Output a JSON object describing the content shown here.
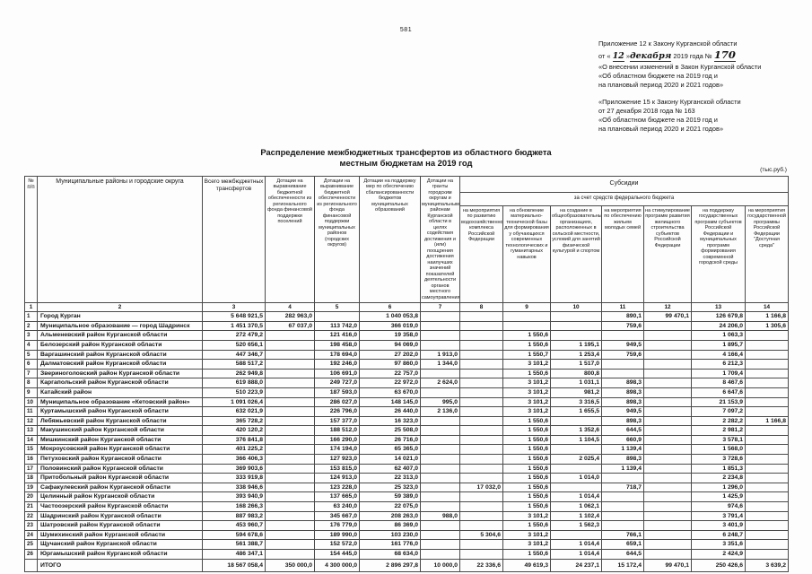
{
  "page_number": "581",
  "appendix1": {
    "line1": "Приложение 12 к Закону Курганской области",
    "date_prefix": "от «",
    "date_day": "12",
    "date_close": "»",
    "date_month": "декабря",
    "date_suffix": "2019 года №",
    "number": "170",
    "line3": "«О внесении изменений в Закон Курганской области",
    "line4": "«Об областном бюджете на 2019 год и",
    "line5": "на плановый период 2020 и 2021 годов»"
  },
  "appendix2": {
    "line1": "«Приложение 15 к Закону Курганской области",
    "line2": "от  27 декабря 2018 года  № 163",
    "line3": "«Об областном бюджете на 2019 год и",
    "line4": "на плановый период 2020 и 2021 годов»"
  },
  "title": {
    "line1": "Распределение межбюджетных трансфертов из областного бюджета",
    "line2": "местным бюджетам на 2019 год"
  },
  "units": "(тыс.руб.)",
  "table": {
    "headers": {
      "c1": "№ п/п",
      "c2": "Муниципальные районы и городские округа",
      "c3": "Всего межбюджетных трансфертов",
      "c4": "Дотации на выравнивание бюджетной обеспеченности из регионального фонда финансовой поддержки поселений",
      "c5": "Дотации на выравнивание бюджетной обеспеченности из регионального фонда финансовой поддержки муниципальных районов (городских округов)",
      "c6": "Дотации на поддержку мер по обеспечению сбалансированности бюджетов муниципальных образований",
      "c7": "Дотации на гранты городским округам и муниципальным районам Курганской области в целях содействия достижения и (или) поощрения достижения наилучших значений показателей деятельности органов местного самоуправления",
      "subsidies": "Субсидии",
      "fed_source": "за счет средств федерального бюджета",
      "c8": "на мероприятия по развитию водохозяйственного комплекса Российской Федерации",
      "c9": "на обновление материально-технической базы для формирования у обучающихся современных технологических и гуманитарных навыков",
      "c10": "на создание в общеобразовательных организациях, расположенных в сельской местности, условий для занятий физической культурой и спортом",
      "c11": "на мероприятия по обеспечению жильем молодых семей",
      "c12": "на стимулирование программ развития жилищного строительства субъектов Российской Федерации",
      "c13": "на поддержку государственных программ субъектов Российской Федерации и муниципальных программ формирования современной городской среды",
      "c14": "на мероприятия государственной программы Российской Федерации \"Доступная среда\""
    },
    "numbering": [
      "1",
      "2",
      "3",
      "4",
      "5",
      "6",
      "7",
      "8",
      "9",
      "10",
      "11",
      "12",
      "13",
      "14"
    ],
    "rows": [
      {
        "num": "1",
        "name": "Город Курган",
        "values": [
          "5 648 921,5",
          "282 963,0",
          "",
          "1 040 053,8",
          "",
          "",
          "",
          "",
          "890,1",
          "99 470,1",
          "126 679,8",
          "1 166,8"
        ]
      },
      {
        "num": "2",
        "name": "Муниципальное образование — город Шадринск",
        "values": [
          "1 451 370,5",
          "67 037,0",
          "113 742,0",
          "366 019,0",
          "",
          "",
          "",
          "",
          "759,6",
          "",
          "24 206,0",
          "1 305,6"
        ]
      },
      {
        "num": "3",
        "name": "Альменевский район Курганской области",
        "values": [
          "272 479,2",
          "",
          "121 416,0",
          "19 358,0",
          "",
          "",
          "1 550,6",
          "",
          "",
          "",
          "1 063,3",
          ""
        ]
      },
      {
        "num": "4",
        "name": "Белозерский район Курганской области",
        "values": [
          "520 656,1",
          "",
          "198 458,0",
          "94 069,0",
          "",
          "",
          "1 550,6",
          "1 195,1",
          "949,5",
          "",
          "1 895,7",
          ""
        ]
      },
      {
        "num": "5",
        "name": "Варгашинский район Курганской области",
        "values": [
          "447 346,7",
          "",
          "178 694,0",
          "27 202,0",
          "1 913,0",
          "",
          "1 550,7",
          "1 253,4",
          "759,6",
          "",
          "4 166,4",
          ""
        ]
      },
      {
        "num": "6",
        "name": "Далматовский район Курганской области",
        "values": [
          "588 517,2",
          "",
          "192 246,0",
          "97 860,0",
          "1 344,0",
          "",
          "3 101,2",
          "1 517,0",
          "",
          "",
          "6 212,3",
          ""
        ]
      },
      {
        "num": "7",
        "name": "Звериноголовский район Курганской области",
        "values": [
          "262 949,8",
          "",
          "106 691,0",
          "22 757,0",
          "",
          "",
          "1 550,6",
          "800,8",
          "",
          "",
          "1 709,4",
          ""
        ]
      },
      {
        "num": "8",
        "name": "Каргапольский район Курганской области",
        "values": [
          "619 888,0",
          "",
          "249 727,0",
          "22 972,0",
          "2 624,0",
          "",
          "3 101,2",
          "1 031,1",
          "898,3",
          "",
          "8 467,6",
          ""
        ]
      },
      {
        "num": "9",
        "name": "Катайский район",
        "values": [
          "510 223,9",
          "",
          "187 593,0",
          "63 670,0",
          "",
          "",
          "3 101,2",
          "981,2",
          "898,3",
          "",
          "6 647,6",
          ""
        ]
      },
      {
        "num": "10",
        "name": "Муниципальное образование «Кетовский район»",
        "values": [
          "1 091 026,4",
          "",
          "286 027,0",
          "148 145,0",
          "995,0",
          "",
          "3 101,2",
          "3 316,5",
          "898,3",
          "",
          "21 153,9",
          ""
        ]
      },
      {
        "num": "11",
        "name": "Куртамышский район Курганской области",
        "values": [
          "632 021,9",
          "",
          "226 796,0",
          "26 440,0",
          "2 136,0",
          "",
          "3 101,2",
          "1 655,5",
          "949,5",
          "",
          "7 097,2",
          ""
        ]
      },
      {
        "num": "12",
        "name": "Лебяжьевский район Курганской области",
        "values": [
          "365 728,2",
          "",
          "157 377,0",
          "16 323,0",
          "",
          "",
          "1 550,6",
          "",
          "898,3",
          "",
          "2 282,2",
          "1 166,8"
        ]
      },
      {
        "num": "13",
        "name": "Макушинский район Курганской области",
        "values": [
          "420 120,2",
          "",
          "188 512,0",
          "25 508,0",
          "",
          "",
          "1 550,6",
          "1 352,6",
          "644,5",
          "",
          "2 981,2",
          ""
        ]
      },
      {
        "num": "14",
        "name": "Мишкинский район Курганской области",
        "values": [
          "376 841,8",
          "",
          "166 290,0",
          "26 716,0",
          "",
          "",
          "1 550,6",
          "1 104,5",
          "660,9",
          "",
          "3 578,1",
          ""
        ]
      },
      {
        "num": "15",
        "name": "Мокроусовский район Курганской области",
        "values": [
          "401 225,2",
          "",
          "174 194,0",
          "65 365,0",
          "",
          "",
          "1 550,6",
          "",
          "1 139,4",
          "",
          "1 568,0",
          ""
        ]
      },
      {
        "num": "16",
        "name": "Петуховский район Курганской области",
        "values": [
          "366 406,3",
          "",
          "127 923,0",
          "14 021,0",
          "",
          "",
          "1 550,6",
          "2 025,4",
          "898,3",
          "",
          "3 728,6",
          ""
        ]
      },
      {
        "num": "17",
        "name": "Половинский район Курганской области",
        "values": [
          "369 903,6",
          "",
          "153 815,0",
          "62 407,0",
          "",
          "",
          "1 550,6",
          "",
          "1 139,4",
          "",
          "1 851,3",
          ""
        ]
      },
      {
        "num": "18",
        "name": "Притобольный район Курганской области",
        "values": [
          "333 919,8",
          "",
          "124 913,0",
          "22 313,0",
          "",
          "",
          "1 550,6",
          "1 014,0",
          "",
          "",
          "2 234,8",
          ""
        ]
      },
      {
        "num": "19",
        "name": "Сафакулевский район Курганской области",
        "values": [
          "338 946,6",
          "",
          "123 228,0",
          "25 323,0",
          "",
          "17 032,0",
          "1 550,6",
          "",
          "718,7",
          "",
          "1 296,0",
          ""
        ]
      },
      {
        "num": "20",
        "name": "Целинный район Курганской области",
        "values": [
          "393 940,9",
          "",
          "137 665,0",
          "59 389,0",
          "",
          "",
          "1 550,6",
          "1 014,4",
          "",
          "",
          "1 425,9",
          ""
        ]
      },
      {
        "num": "21",
        "name": "Частоозерский район Курганской области",
        "values": [
          "168 266,3",
          "",
          "63 240,0",
          "22 075,0",
          "",
          "",
          "1 550,6",
          "1 062,1",
          "",
          "",
          "974,6",
          ""
        ]
      },
      {
        "num": "22",
        "name": "Шадринский район Курганской области",
        "values": [
          "887 983,2",
          "",
          "345 667,0",
          "208 263,0",
          "988,0",
          "",
          "3 101,2",
          "1 102,4",
          "",
          "",
          "3 791,4",
          ""
        ]
      },
      {
        "num": "23",
        "name": "Шатровский район Курганской области",
        "values": [
          "453 960,7",
          "",
          "176 779,0",
          "86 369,0",
          "",
          "",
          "1 550,6",
          "1 562,3",
          "",
          "",
          "3 401,9",
          ""
        ]
      },
      {
        "num": "24",
        "name": "Шумихинский район Курганской области",
        "values": [
          "594 678,6",
          "",
          "189 990,0",
          "103 230,0",
          "",
          "5 304,6",
          "3 101,2",
          "",
          "766,1",
          "",
          "6 248,7",
          ""
        ]
      },
      {
        "num": "25",
        "name": "Щучанский район Курганской области",
        "values": [
          "561 388,7",
          "",
          "152 572,0",
          "161 776,0",
          "",
          "",
          "3 101,2",
          "1 014,4",
          "659,1",
          "",
          "3 351,6",
          ""
        ]
      },
      {
        "num": "26",
        "name": "Юргамышский район Курганской области",
        "values": [
          "486 347,1",
          "",
          "154 445,0",
          "68 634,0",
          "",
          "",
          "1 550,6",
          "1 014,4",
          "644,5",
          "",
          "2 424,9",
          ""
        ]
      }
    ],
    "total": {
      "label": "ИТОГО",
      "values": [
        "18 567 058,4",
        "350 000,0",
        "4 300 000,0",
        "2 896 297,8",
        "10 000,0",
        "22 336,6",
        "49 619,3",
        "24 237,1",
        "15 172,4",
        "99 470,1",
        "250 426,6",
        "3 639,2"
      ]
    }
  }
}
